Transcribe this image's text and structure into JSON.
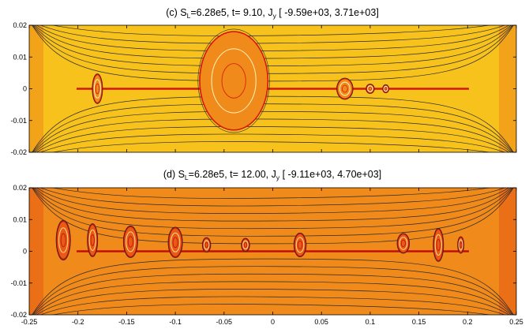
{
  "chart_data": [
    {
      "type": "heatmap",
      "title_parts": {
        "prefix": "(c) S",
        "sub1": "L",
        "mid": "=6.28e5, t=  9.10, J",
        "sub2": "y",
        "suffix": " [ -9.59e+03,  3.71e+03]"
      },
      "xlim": [
        -0.25,
        0.25
      ],
      "ylim": [
        -0.02,
        0.02
      ],
      "yticks": [
        "0.02",
        "0.01",
        "0",
        "-0.01",
        "-0.02"
      ],
      "xticks": [],
      "colormap": {
        "background": "#f7c21c",
        "mid": "#f08a1a",
        "hot": "#d4160c",
        "light": "#fff6b8"
      },
      "contour_color": "#2a2a2a",
      "structures": [
        {
          "x": -0.18,
          "y": 0.0,
          "w": 0.01,
          "h": 0.0045,
          "kind": "plasmoid"
        },
        {
          "x": -0.04,
          "y": 0.0025,
          "w": 0.07,
          "h": 0.0155,
          "kind": "large-plasmoid"
        },
        {
          "x": 0.074,
          "y": 0.0,
          "w": 0.016,
          "h": 0.0032,
          "kind": "plasmoid"
        },
        {
          "x": 0.1,
          "y": 0.0,
          "w": 0.008,
          "h": 0.0014,
          "kind": "plasmoid"
        },
        {
          "x": 0.116,
          "y": 0.0,
          "w": 0.006,
          "h": 0.0012,
          "kind": "plasmoid"
        }
      ]
    },
    {
      "type": "heatmap",
      "title_parts": {
        "prefix": "(d) S",
        "sub1": "L",
        "mid": "=6.28e5, t= 12.00, J",
        "sub2": "y",
        "suffix": " [ -9.11e+03,  4.70e+03]"
      },
      "xlim": [
        -0.25,
        0.25
      ],
      "ylim": [
        -0.02,
        0.02
      ],
      "yticks": [
        "0.02",
        "0.01",
        "0",
        "-0.01",
        "-0.02"
      ],
      "xticks": [
        "-0.25",
        "-0.2",
        "-0.15",
        "-0.1",
        "-0.05",
        "0",
        "0.05",
        "0.1",
        "0.15",
        "0.2",
        "0.25"
      ],
      "colormap": {
        "background": "#f08a1a",
        "mid": "#e85a16",
        "hot": "#c0100a",
        "light": "#ffe08a"
      },
      "contour_color": "#2a2a2a",
      "structures": [
        {
          "x": -0.215,
          "y": 0.0035,
          "w": 0.014,
          "h": 0.006,
          "kind": "plasmoid"
        },
        {
          "x": -0.185,
          "y": 0.0035,
          "w": 0.01,
          "h": 0.005,
          "kind": "plasmoid"
        },
        {
          "x": -0.146,
          "y": 0.003,
          "w": 0.014,
          "h": 0.0048,
          "kind": "plasmoid"
        },
        {
          "x": -0.1,
          "y": 0.0028,
          "w": 0.014,
          "h": 0.0046,
          "kind": "plasmoid"
        },
        {
          "x": -0.068,
          "y": 0.002,
          "w": 0.008,
          "h": 0.0022,
          "kind": "plasmoid"
        },
        {
          "x": -0.028,
          "y": 0.002,
          "w": 0.008,
          "h": 0.002,
          "kind": "plasmoid"
        },
        {
          "x": 0.028,
          "y": 0.002,
          "w": 0.012,
          "h": 0.0036,
          "kind": "plasmoid"
        },
        {
          "x": 0.134,
          "y": 0.0025,
          "w": 0.012,
          "h": 0.003,
          "kind": "plasmoid"
        },
        {
          "x": 0.17,
          "y": 0.002,
          "w": 0.01,
          "h": 0.005,
          "kind": "plasmoid"
        },
        {
          "x": 0.193,
          "y": 0.002,
          "w": 0.006,
          "h": 0.0025,
          "kind": "plasmoid"
        }
      ]
    }
  ]
}
